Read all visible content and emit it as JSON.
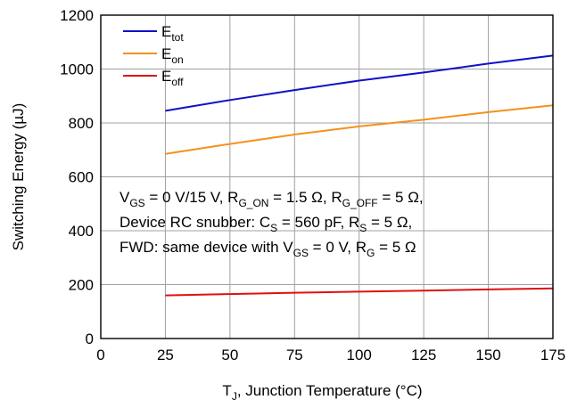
{
  "chart_data": {
    "type": "line",
    "title": "",
    "xlabel": {
      "main": "T",
      "sub": "J",
      "rest": ", Junction Temperature (°C)"
    },
    "ylabel": "Switching Energy (µJ)",
    "xlim": [
      0,
      175
    ],
    "ylim": [
      0,
      1200
    ],
    "xticks": [
      0,
      25,
      50,
      75,
      100,
      125,
      150,
      175
    ],
    "yticks": [
      0,
      200,
      400,
      600,
      800,
      1000,
      1200
    ],
    "grid": true,
    "legend_position": "top-left",
    "x": [
      25,
      50,
      75,
      100,
      125,
      150,
      175
    ],
    "series": [
      {
        "name": {
          "main": "E",
          "sub": "tot"
        },
        "color": "#1010c8",
        "values": [
          845,
          885,
          922,
          957,
          987,
          1020,
          1050
        ]
      },
      {
        "name": {
          "main": "E",
          "sub": "on"
        },
        "color": "#f5901e",
        "values": [
          685,
          722,
          757,
          787,
          812,
          840,
          865
        ]
      },
      {
        "name": {
          "main": "E",
          "sub": "off"
        },
        "color": "#e01010",
        "values": [
          160,
          165,
          170,
          174,
          178,
          182,
          186
        ]
      }
    ],
    "annotation_lines": [
      [
        {
          "t": "V"
        },
        {
          "t": "GS",
          "sub": true
        },
        {
          "t": " = 0 V/15 V, R"
        },
        {
          "t": "G_ON",
          "sub": true
        },
        {
          "t": " = 1.5 Ω, R"
        },
        {
          "t": "G_OFF",
          "sub": true
        },
        {
          "t": " = 5 Ω,"
        }
      ],
      [
        {
          "t": "Device RC snubber: C"
        },
        {
          "t": "S",
          "sub": true
        },
        {
          "t": " = 560 pF, R"
        },
        {
          "t": "S",
          "sub": true
        },
        {
          "t": " = 5 Ω,"
        }
      ],
      [
        {
          "t": "FWD: same device with V"
        },
        {
          "t": "GS",
          "sub": true
        },
        {
          "t": " = 0 V, R"
        },
        {
          "t": "G",
          "sub": true
        },
        {
          "t": " = 5 Ω"
        }
      ]
    ]
  }
}
